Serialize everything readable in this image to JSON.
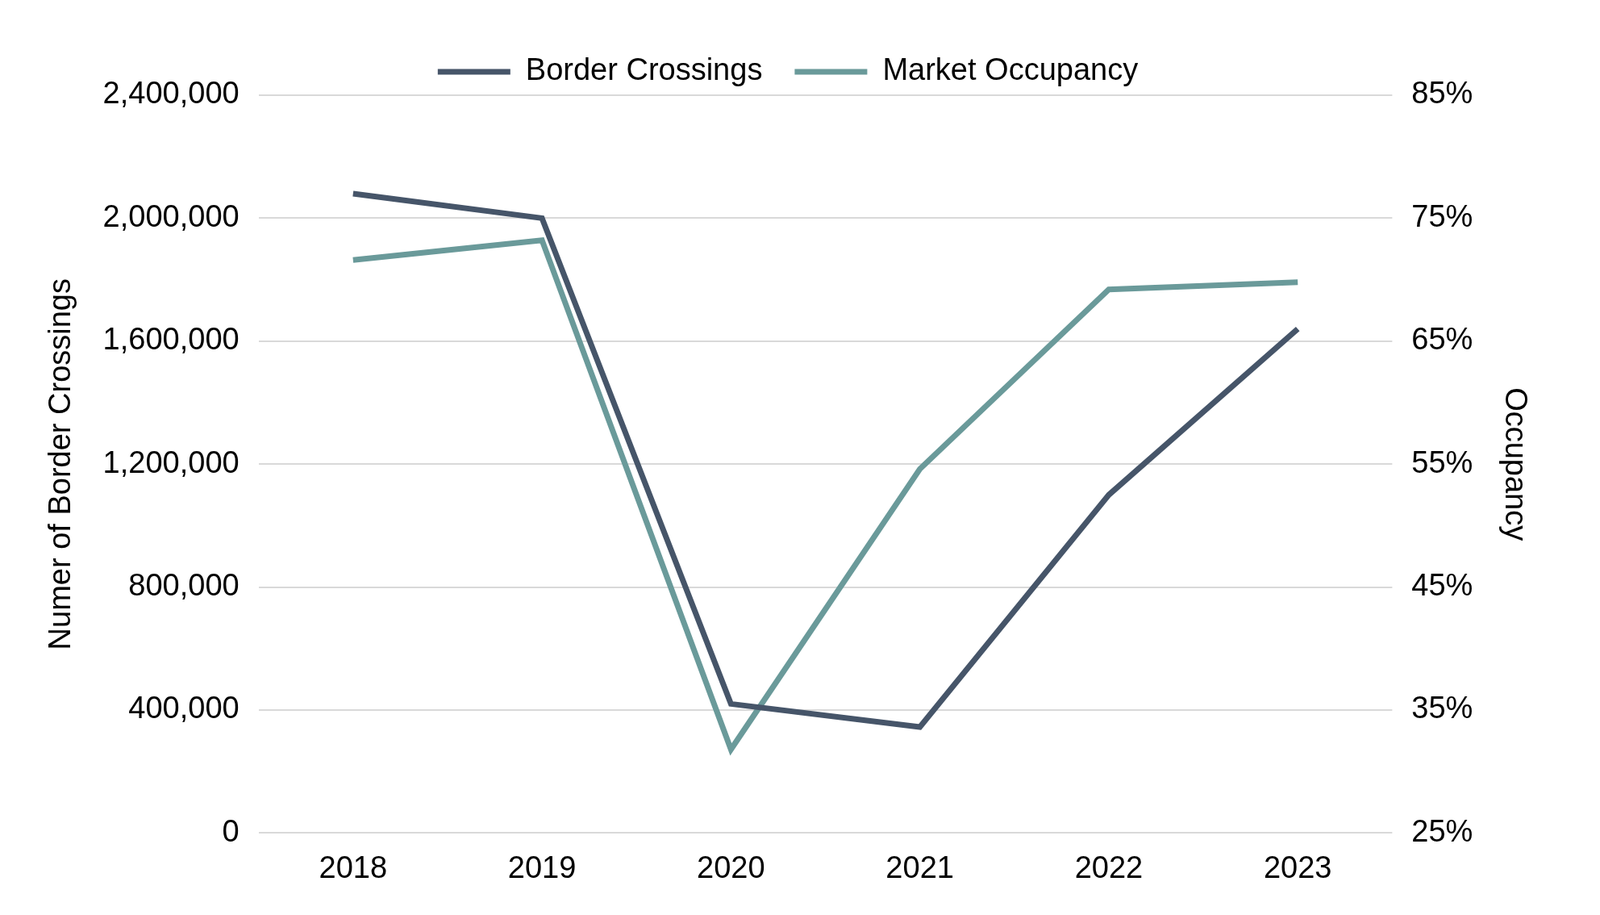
{
  "chart_data": {
    "type": "line",
    "categories": [
      "2018",
      "2019",
      "2020",
      "2021",
      "2022",
      "2023"
    ],
    "series": [
      {
        "name": "Border Crossings",
        "color": "#465569",
        "values": [
          2080000,
          2000000,
          420000,
          345000,
          1100000,
          1640000
        ]
      },
      {
        "name": "Market Occupancy",
        "color": "#6a9a9a",
        "values": [
          71.6,
          73.2,
          31.8,
          54.6,
          69.2,
          69.8
        ],
        "axis": "y2"
      }
    ],
    "y_label": "Numer of Border Crossings",
    "y2_label": "Occupancy",
    "ylim": [
      0,
      2400000
    ],
    "yticks": [
      0,
      {
        "value": 400000,
        "label": "400,000"
      },
      {
        "value": 800000,
        "label": "800,000"
      },
      {
        "value": 1200000,
        "label": "1,200,000"
      },
      {
        "value": 1600000,
        "label": "1,600,000"
      },
      {
        "value": 2000000,
        "label": "2,000,000"
      },
      {
        "value": 2400000,
        "label": "2,400,000"
      }
    ],
    "y2lim": [
      25,
      85
    ],
    "y2ticks": [
      {
        "value": 25,
        "label": "25%"
      },
      {
        "value": 35,
        "label": "35%"
      },
      {
        "value": 45,
        "label": "45%"
      },
      {
        "value": 55,
        "label": "55%"
      },
      {
        "value": 65,
        "label": "65%"
      },
      {
        "value": 75,
        "label": "75%"
      },
      {
        "value": 85,
        "label": "85%"
      }
    ],
    "grid": true,
    "legend": "top"
  }
}
